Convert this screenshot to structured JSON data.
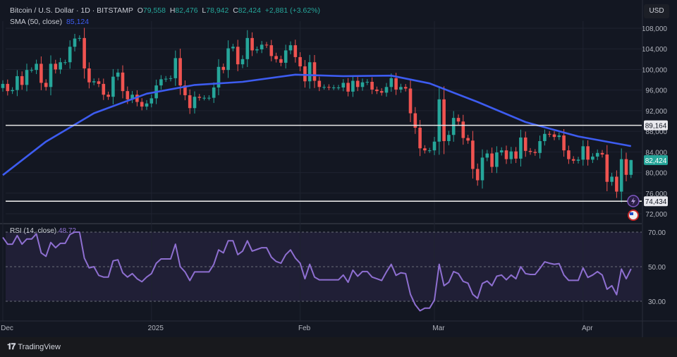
{
  "header": {
    "symbol_title": "Bitcoin / U.S. Dollar · 1D · BITSTAMP",
    "open_label": "O",
    "open_value": "79,558",
    "high_label": "H",
    "high_value": "82,476",
    "low_label": "L",
    "low_value": "78,942",
    "close_label": "C",
    "close_value": "82,424",
    "change": "+2,881 (+3.62%)",
    "sma_label": "SMA (50, close)",
    "sma_value": "85,124"
  },
  "currency_button": "USD",
  "rsi_legend": {
    "label": "RSI (14, close)",
    "value": "48.72"
  },
  "footer": {
    "brand": "TradingView"
  },
  "icons": [
    "lightning-icon",
    "us-flag-icon",
    "tradingview-logo-icon"
  ],
  "colors": {
    "up": "#26a69a",
    "down": "#ef5350",
    "sma": "#3d5cf0",
    "rsi": "#8e6fd1",
    "level_line": "#e6e6e6",
    "background": "#131722"
  },
  "chart_data": [
    {
      "type": "candlestick",
      "title": "Bitcoin / U.S. Dollar · 1D · BITSTAMP",
      "start_date": "2024-12-01",
      "interval": "1D",
      "first_open": 96400,
      "close": [
        97200,
        95800,
        96000,
        98700,
        97000,
        99900,
        99900,
        101100,
        97400,
        96600,
        101100,
        100000,
        101400,
        101400,
        104400,
        106000,
        106100,
        100200,
        97500,
        97700,
        97200,
        95100,
        94700,
        98600,
        99400,
        95800,
        94200,
        95100,
        93700,
        92800,
        93400,
        94400,
        96900,
        98100,
        98200,
        98300,
        102200,
        96900,
        95000,
        92500,
        94700,
        94500,
        94500,
        94500,
        96500,
        100500,
        99900,
        104100,
        104400,
        101000,
        102000,
        106100,
        103700,
        103900,
        104800,
        104700,
        102600,
        102000,
        101300,
        103700,
        104700,
        102400,
        100600,
        97700,
        101400,
        97800,
        96600,
        96600,
        96500,
        96500,
        96500,
        97400,
        95700,
        97800,
        96600,
        97500,
        97600,
        96100,
        95800,
        95500,
        96600,
        98300,
        96100,
        96600,
        96300,
        91500,
        88700,
        84700,
        84300,
        84300,
        86000,
        94200,
        86100,
        87300,
        90600,
        89900,
        86700,
        86200,
        80700,
        78500,
        82900,
        83700,
        81100,
        83900,
        84300,
        82600,
        84100,
        82700,
        86800,
        84200,
        84000,
        83800,
        86100,
        87500,
        87400,
        86900,
        87200,
        84300,
        82600,
        82300,
        82500,
        85100,
        82500,
        83100,
        83800,
        83500,
        78200,
        79200,
        76300,
        82600,
        79558,
        82424
      ],
      "last_candle": {
        "open": 79558,
        "high": 82476,
        "low": 78942,
        "close": 82424
      },
      "sma": {
        "name": "SMA (50, close)",
        "points": [
          [
            "2024-12-01",
            79500
          ],
          [
            "2024-12-10",
            86000
          ],
          [
            "2024-12-20",
            91500
          ],
          [
            "2024-12-31",
            95300
          ],
          [
            "2025-01-10",
            97000
          ],
          [
            "2025-01-20",
            97600
          ],
          [
            "2025-01-31",
            99000
          ],
          [
            "2025-02-10",
            98700
          ],
          [
            "2025-02-20",
            98800
          ],
          [
            "2025-02-28",
            97300
          ],
          [
            "2025-03-10",
            93700
          ],
          [
            "2025-03-20",
            89800
          ],
          [
            "2025-03-31",
            87000
          ],
          [
            "2025-04-11",
            85124
          ]
        ]
      },
      "horizontal_levels": [
        {
          "value": 89164,
          "label": "89,164"
        },
        {
          "value": 74434,
          "label": "74,434"
        }
      ],
      "last_price_label": "82,424",
      "y_ticks": [
        "108,000",
        "104,000",
        "100,000",
        "96,000",
        "92,000",
        "88,000",
        "84,000",
        "80,000",
        "76,000",
        "72,000"
      ],
      "y_tick_values": [
        108000,
        104000,
        100000,
        96000,
        92000,
        88000,
        84000,
        80000,
        76000,
        72000
      ],
      "ylim": [
        71000,
        110000
      ],
      "grid": true
    },
    {
      "type": "line",
      "title": "RSI (14, close)",
      "start_date": "2024-12-01",
      "values": [
        67,
        63,
        63,
        68,
        63,
        66,
        66,
        69,
        58,
        56,
        64,
        61,
        63.5,
        63.5,
        68.6,
        70,
        70,
        55,
        49.3,
        50,
        45,
        44,
        44,
        53.4,
        54,
        46.5,
        44,
        46,
        43,
        41.3,
        44,
        46,
        52,
        54.5,
        54.5,
        54.5,
        63,
        50,
        47,
        42,
        47,
        47,
        47,
        47,
        51.4,
        59.7,
        58,
        65,
        65,
        57,
        59,
        65,
        59,
        60,
        61,
        61,
        55.5,
        53,
        52,
        57,
        59.7,
        55,
        52,
        43,
        51.4,
        44,
        42.4,
        42.4,
        42.4,
        42.4,
        42.4,
        45.2,
        41,
        48,
        44.5,
        47.2,
        47.2,
        44,
        43,
        42,
        47,
        51.4,
        45,
        46.5,
        46,
        34,
        28,
        24.5,
        26,
        26,
        30.7,
        51.4,
        39,
        41,
        47.2,
        46,
        41.5,
        40.5,
        34,
        31.7,
        40.3,
        41.7,
        39,
        44.5,
        45.2,
        42.4,
        45.2,
        43,
        50,
        46,
        45.5,
        45.5,
        49,
        52.8,
        52,
        51.4,
        51.8,
        45.2,
        42.1,
        42.1,
        42.1,
        49.3,
        43.8,
        45.2,
        47.2,
        45.2,
        37,
        39,
        33.8,
        48.6,
        43,
        48.72
      ],
      "levels": [
        70,
        50,
        30
      ],
      "y_ticks": [
        "70.00",
        "50.00",
        "30.00"
      ],
      "band": [
        30,
        70
      ]
    }
  ],
  "x_ticks": [
    {
      "label": "Dec",
      "date": "2024-12-01"
    },
    {
      "label": "2025",
      "date": "2025-01-01"
    },
    {
      "label": "Feb",
      "date": "2025-02-01"
    },
    {
      "label": "Mar",
      "date": "2025-03-01"
    },
    {
      "label": "Apr",
      "date": "2025-04-01"
    }
  ]
}
